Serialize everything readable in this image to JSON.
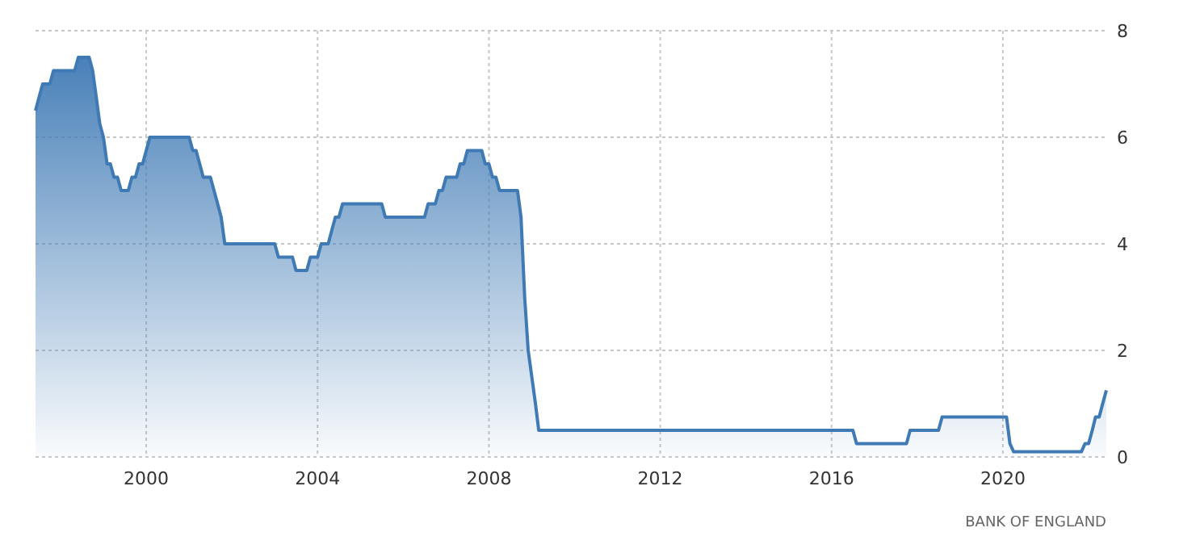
{
  "chart_data": {
    "type": "area",
    "x": [
      "1997-06",
      "1997-07",
      "1997-08",
      "1997-10",
      "1997-11",
      "1998-05",
      "1998-06",
      "1998-09",
      "1998-10",
      "1998-11",
      "1998-12",
      "1999-01",
      "1999-02",
      "1999-03",
      "1999-04",
      "1999-05",
      "1999-06",
      "1999-08",
      "1999-09",
      "1999-10",
      "1999-11",
      "1999-12",
      "2000-01",
      "2000-02",
      "2001-01",
      "2001-02",
      "2001-03",
      "2001-04",
      "2001-05",
      "2001-07",
      "2001-08",
      "2001-09",
      "2001-10",
      "2001-11",
      "2003-01",
      "2003-02",
      "2003-06",
      "2003-07",
      "2003-10",
      "2003-11",
      "2004-01",
      "2004-02",
      "2004-04",
      "2004-05",
      "2004-06",
      "2004-07",
      "2004-08",
      "2005-07",
      "2005-08",
      "2006-07",
      "2006-08",
      "2006-10",
      "2006-11",
      "2006-12",
      "2007-01",
      "2007-04",
      "2007-05",
      "2007-06",
      "2007-07",
      "2007-11",
      "2007-12",
      "2008-01",
      "2008-02",
      "2008-03",
      "2008-04",
      "2008-09",
      "2008-10",
      "2008-11",
      "2008-12",
      "2009-01",
      "2009-02",
      "2009-03",
      "2016-07",
      "2016-08",
      "2017-10",
      "2017-11",
      "2018-07",
      "2018-08",
      "2020-02",
      "2020-03",
      "2020-04",
      "2021-11",
      "2021-12",
      "2022-01",
      "2022-02",
      "2022-03",
      "2022-04",
      "2022-05",
      "2022-06"
    ],
    "values": [
      6.5,
      6.75,
      7,
      7,
      7.25,
      7.25,
      7.5,
      7.5,
      7.25,
      6.75,
      6.25,
      6,
      5.5,
      5.5,
      5.25,
      5.25,
      5,
      5,
      5.25,
      5.25,
      5.5,
      5.5,
      5.75,
      6,
      6,
      5.75,
      5.75,
      5.5,
      5.25,
      5.25,
      5,
      4.75,
      4.5,
      4,
      4,
      3.75,
      3.75,
      3.5,
      3.5,
      3.75,
      3.75,
      4,
      4,
      4.25,
      4.5,
      4.5,
      4.75,
      4.75,
      4.5,
      4.5,
      4.75,
      4.75,
      5,
      5,
      5.25,
      5.25,
      5.5,
      5.5,
      5.75,
      5.75,
      5.5,
      5.5,
      5.25,
      5.25,
      5,
      5,
      4.5,
      3,
      2,
      1.5,
      1,
      0.5,
      0.5,
      0.25,
      0.25,
      0.5,
      0.5,
      0.75,
      0.75,
      0.25,
      0.1,
      0.1,
      0.25,
      0.25,
      0.5,
      0.75,
      0.75,
      1,
      1.25
    ],
    "color": "#3f7ab5",
    "xlim": [
      "1997-06",
      "2022-06"
    ],
    "xticks": [
      "2000",
      "2004",
      "2008",
      "2012",
      "2016",
      "2020"
    ],
    "ylim": [
      0,
      8
    ],
    "yticks": [
      0,
      2,
      4,
      6,
      8
    ],
    "grid": true,
    "annotations": [
      "BANK OF ENGLAND"
    ]
  }
}
